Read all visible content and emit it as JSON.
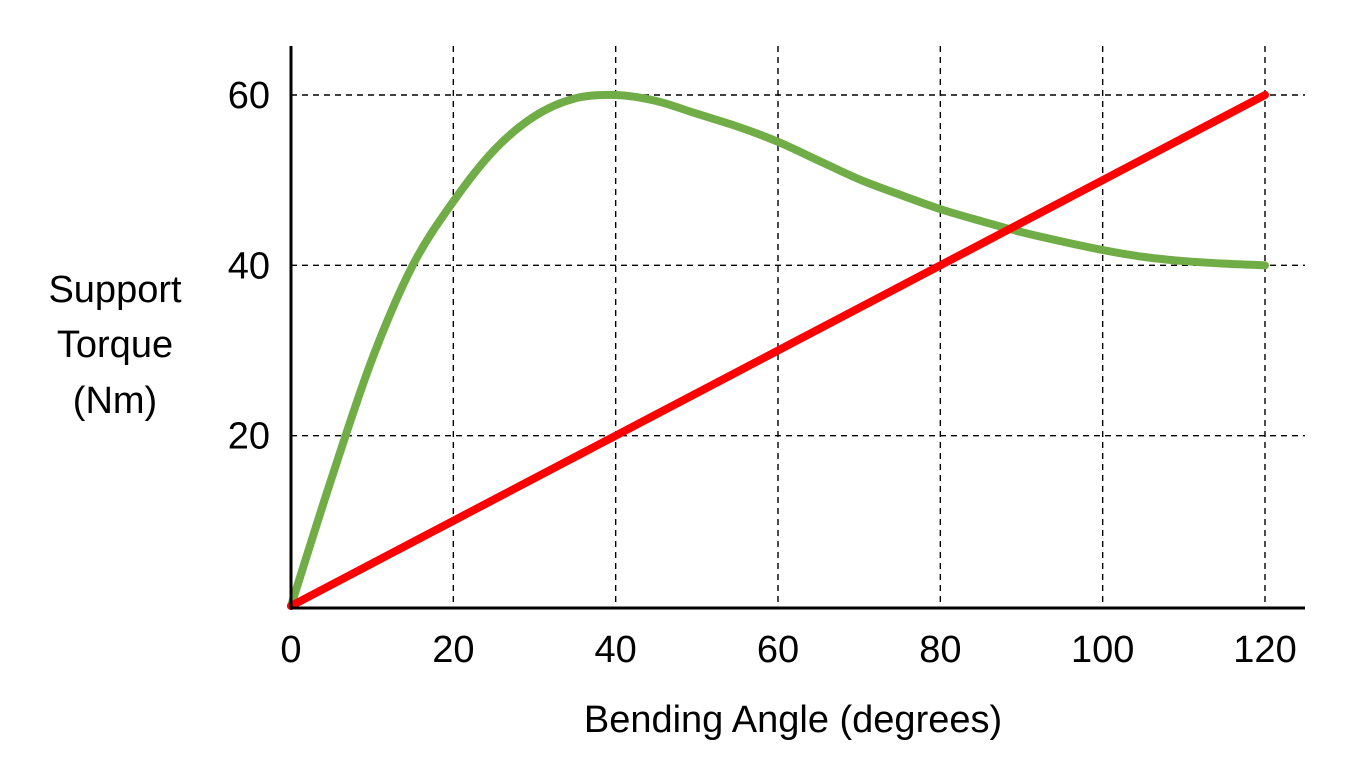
{
  "chart_data": {
    "type": "line",
    "title": "",
    "xlabel": "Bending Angle (degrees)",
    "ylabel": [
      "Support",
      "Torque",
      "(Nm)"
    ],
    "xlim": [
      0,
      120
    ],
    "ylim": [
      0,
      60
    ],
    "x_ticks": [
      0,
      20,
      40,
      60,
      80,
      100,
      120
    ],
    "y_ticks": [
      20,
      40,
      60
    ],
    "x_tick_labels": [
      "0",
      "20",
      "40",
      "60",
      "80",
      "100",
      "120"
    ],
    "y_tick_labels": [
      "20",
      "40",
      "60"
    ],
    "grid": true,
    "series": [
      {
        "color": "#70ad47",
        "x": [
          0,
          5,
          10,
          15,
          20,
          25,
          30,
          35,
          40,
          45,
          50,
          55,
          60,
          65,
          70,
          75,
          80,
          85,
          90,
          95,
          100,
          105,
          110,
          115,
          120
        ],
        "y": [
          0,
          15,
          29,
          40,
          47.5,
          53.5,
          57.5,
          59.6,
          60,
          59.3,
          57.8,
          56.3,
          54.5,
          52.3,
          50.1,
          48.3,
          46.6,
          45.2,
          43.9,
          42.8,
          41.8,
          41.0,
          40.5,
          40.2,
          40.0
        ]
      },
      {
        "color": "#ff0000",
        "x": [
          0,
          120
        ],
        "y": [
          0,
          60
        ]
      }
    ]
  }
}
